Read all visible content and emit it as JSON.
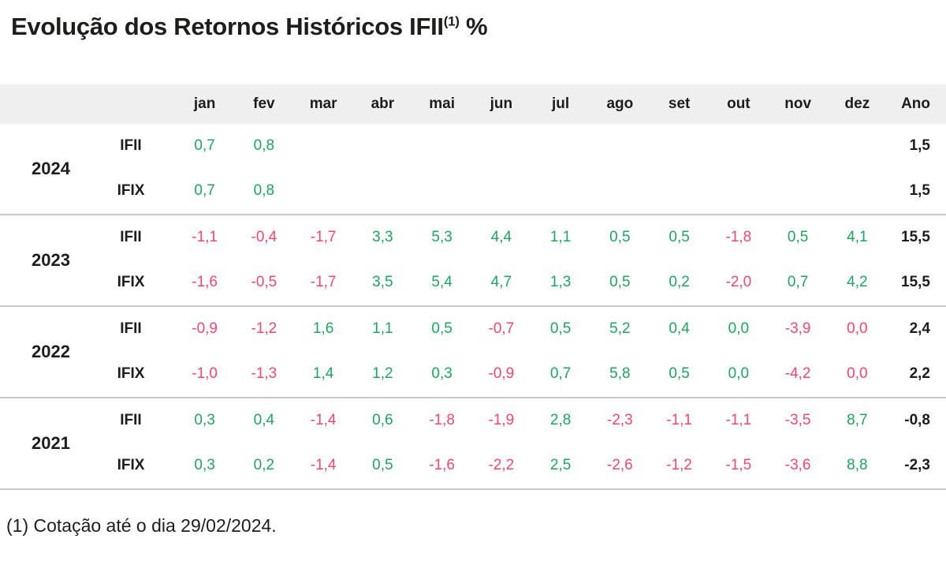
{
  "title": {
    "main": "Evolução dos Retornos Históricos IFII",
    "superscript": "(1)",
    "suffix": " %"
  },
  "footnote": "(1) Cotação até o dia 29/02/2024.",
  "colors": {
    "positive": "#1ea65c",
    "negative": "#f9466e",
    "text": "#1d1d1b",
    "header_bg": "#efefef",
    "divider": "#c9c9c9"
  },
  "table": {
    "month_headers": [
      "jan",
      "fev",
      "mar",
      "abr",
      "mai",
      "jun",
      "jul",
      "ago",
      "set",
      "out",
      "nov",
      "dez"
    ],
    "annual_header": "Ano",
    "groups": [
      {
        "year": "2024",
        "rows": [
          {
            "index": "IFII",
            "values": [
              "0,7",
              "0,8",
              "",
              "",
              "",
              "",
              "",
              "",
              "",
              "",
              "",
              ""
            ],
            "signs": [
              "g",
              "g",
              "",
              "",
              "",
              "",
              "",
              "",
              "",
              "",
              "",
              ""
            ],
            "annual": "1,5"
          },
          {
            "index": "IFIX",
            "values": [
              "0,7",
              "0,8",
              "",
              "",
              "",
              "",
              "",
              "",
              "",
              "",
              "",
              ""
            ],
            "signs": [
              "g",
              "g",
              "",
              "",
              "",
              "",
              "",
              "",
              "",
              "",
              "",
              ""
            ],
            "annual": "1,5"
          }
        ]
      },
      {
        "year": "2023",
        "rows": [
          {
            "index": "IFII",
            "values": [
              "-1,1",
              "-0,4",
              "-1,7",
              "3,3",
              "5,3",
              "4,4",
              "1,1",
              "0,5",
              "0,5",
              "-1,8",
              "0,5",
              "4,1"
            ],
            "signs": [
              "p",
              "p",
              "p",
              "g",
              "g",
              "g",
              "g",
              "g",
              "g",
              "p",
              "g",
              "g"
            ],
            "annual": "15,5"
          },
          {
            "index": "IFIX",
            "values": [
              "-1,6",
              "-0,5",
              "-1,7",
              "3,5",
              "5,4",
              "4,7",
              "1,3",
              "0,5",
              "0,2",
              "-2,0",
              "0,7",
              "4,2"
            ],
            "signs": [
              "p",
              "p",
              "p",
              "g",
              "g",
              "g",
              "g",
              "g",
              "g",
              "p",
              "g",
              "g"
            ],
            "annual": "15,5"
          }
        ]
      },
      {
        "year": "2022",
        "rows": [
          {
            "index": "IFII",
            "values": [
              "-0,9",
              "-1,2",
              "1,6",
              "1,1",
              "0,5",
              "-0,7",
              "0,5",
              "5,2",
              "0,4",
              "0,0",
              "-3,9",
              "0,0"
            ],
            "signs": [
              "p",
              "p",
              "g",
              "g",
              "g",
              "p",
              "g",
              "g",
              "g",
              "g",
              "p",
              "p"
            ],
            "annual": "2,4"
          },
          {
            "index": "IFIX",
            "values": [
              "-1,0",
              "-1,3",
              "1,4",
              "1,2",
              "0,3",
              "-0,9",
              "0,7",
              "5,8",
              "0,5",
              "0,0",
              "-4,2",
              "0,0"
            ],
            "signs": [
              "p",
              "p",
              "g",
              "g",
              "g",
              "p",
              "g",
              "g",
              "g",
              "g",
              "p",
              "p"
            ],
            "annual": "2,2"
          }
        ]
      },
      {
        "year": "2021",
        "rows": [
          {
            "index": "IFII",
            "values": [
              "0,3",
              "0,4",
              "-1,4",
              "0,6",
              "-1,8",
              "-1,9",
              "2,8",
              "-2,3",
              "-1,1",
              "-1,1",
              "-3,5",
              "8,7"
            ],
            "signs": [
              "g",
              "g",
              "p",
              "g",
              "p",
              "p",
              "g",
              "p",
              "p",
              "p",
              "p",
              "g"
            ],
            "annual": "-0,8"
          },
          {
            "index": "IFIX",
            "values": [
              "0,3",
              "0,2",
              "-1,4",
              "0,5",
              "-1,6",
              "-2,2",
              "2,5",
              "-2,6",
              "-1,2",
              "-1,5",
              "-3,6",
              "8,8"
            ],
            "signs": [
              "g",
              "g",
              "p",
              "g",
              "p",
              "p",
              "g",
              "p",
              "p",
              "p",
              "p",
              "g"
            ],
            "annual": "-2,3"
          }
        ]
      }
    ]
  },
  "chart_data": {
    "type": "table",
    "title": "Evolução dos Retornos Históricos IFII(1) %",
    "categories": [
      "jan",
      "fev",
      "mar",
      "abr",
      "mai",
      "jun",
      "jul",
      "ago",
      "set",
      "out",
      "nov",
      "dez",
      "Ano"
    ],
    "series": [
      {
        "name": "2024 IFII",
        "values": [
          0.7,
          0.8,
          null,
          null,
          null,
          null,
          null,
          null,
          null,
          null,
          null,
          null,
          1.5
        ]
      },
      {
        "name": "2024 IFIX",
        "values": [
          0.7,
          0.8,
          null,
          null,
          null,
          null,
          null,
          null,
          null,
          null,
          null,
          null,
          1.5
        ]
      },
      {
        "name": "2023 IFII",
        "values": [
          -1.1,
          -0.4,
          -1.7,
          3.3,
          5.3,
          4.4,
          1.1,
          0.5,
          0.5,
          -1.8,
          0.5,
          4.1,
          15.5
        ]
      },
      {
        "name": "2023 IFIX",
        "values": [
          -1.6,
          -0.5,
          -1.7,
          3.5,
          5.4,
          4.7,
          1.3,
          0.5,
          0.2,
          -2.0,
          0.7,
          4.2,
          15.5
        ]
      },
      {
        "name": "2022 IFII",
        "values": [
          -0.9,
          -1.2,
          1.6,
          1.1,
          0.5,
          -0.7,
          0.5,
          5.2,
          0.4,
          0.0,
          -3.9,
          0.0,
          2.4
        ]
      },
      {
        "name": "2022 IFIX",
        "values": [
          -1.0,
          -1.3,
          1.4,
          1.2,
          0.3,
          -0.9,
          0.7,
          5.8,
          0.5,
          0.0,
          -4.2,
          0.0,
          2.2
        ]
      },
      {
        "name": "2021 IFII",
        "values": [
          0.3,
          0.4,
          -1.4,
          0.6,
          -1.8,
          -1.9,
          2.8,
          -2.3,
          -1.1,
          -1.1,
          -3.5,
          8.7,
          -0.8
        ]
      },
      {
        "name": "2021 IFIX",
        "values": [
          0.3,
          0.2,
          -1.4,
          0.5,
          -1.6,
          -2.2,
          2.5,
          -2.6,
          -1.2,
          -1.5,
          -3.6,
          8.8,
          -2.3
        ]
      }
    ],
    "value_color_rule": "green = positive month, pink = negative month (0,0 keeps the sign color of the underlying unrounded return); bold black = annual total",
    "footnote": "(1) Cotação até o dia 29/02/2024."
  }
}
